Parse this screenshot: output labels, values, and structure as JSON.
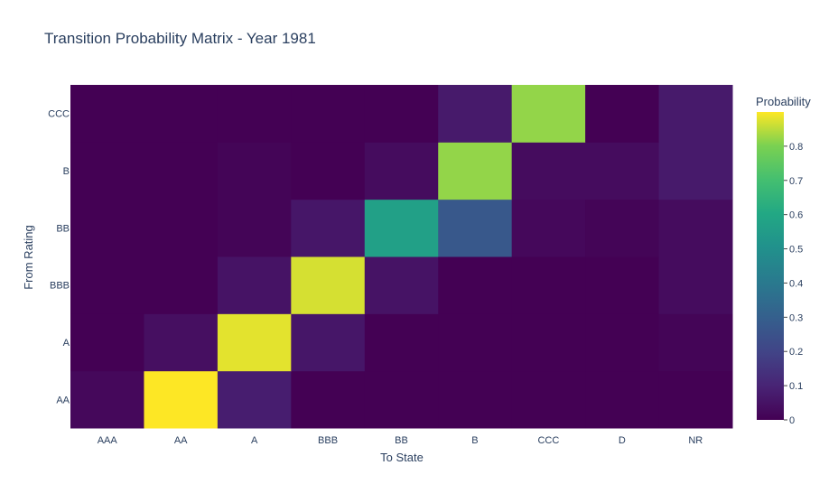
{
  "chart_data": {
    "type": "heatmap",
    "title": "Transition Probability Matrix - Year 1981",
    "xlabel": "To State",
    "ylabel": "From Rating",
    "colorbar_title": "Probability",
    "colorscale": "Viridis",
    "zlim": [
      0,
      0.9
    ],
    "colorbar_ticks": [
      "0",
      "0.1",
      "0.2",
      "0.3",
      "0.4",
      "0.5",
      "0.6",
      "0.7",
      "0.8"
    ],
    "colorbar_tick_values": [
      0,
      0.1,
      0.2,
      0.3,
      0.4,
      0.5,
      0.6,
      0.7,
      0.8
    ],
    "x": [
      "AAA",
      "AA",
      "A",
      "BBB",
      "BB",
      "B",
      "CCC",
      "D",
      "NR"
    ],
    "y": [
      "AA",
      "A",
      "BBB",
      "BB",
      "B",
      "CCC"
    ],
    "z": [
      [
        0.02,
        0.9,
        0.08,
        0.0,
        0.0,
        0.0,
        0.0,
        0.0,
        0.0
      ],
      [
        0.0,
        0.04,
        0.88,
        0.06,
        0.0,
        0.0,
        0.0,
        0.0,
        0.01
      ],
      [
        0.0,
        0.0,
        0.05,
        0.87,
        0.05,
        0.0,
        0.0,
        0.0,
        0.03
      ],
      [
        0.0,
        0.0,
        0.01,
        0.06,
        0.57,
        0.27,
        0.02,
        0.01,
        0.03
      ],
      [
        0.0,
        0.0,
        0.01,
        0.0,
        0.03,
        0.82,
        0.03,
        0.03,
        0.07
      ],
      [
        0.0,
        0.0,
        0.0,
        0.0,
        0.0,
        0.07,
        0.82,
        0.0,
        0.07
      ]
    ]
  }
}
